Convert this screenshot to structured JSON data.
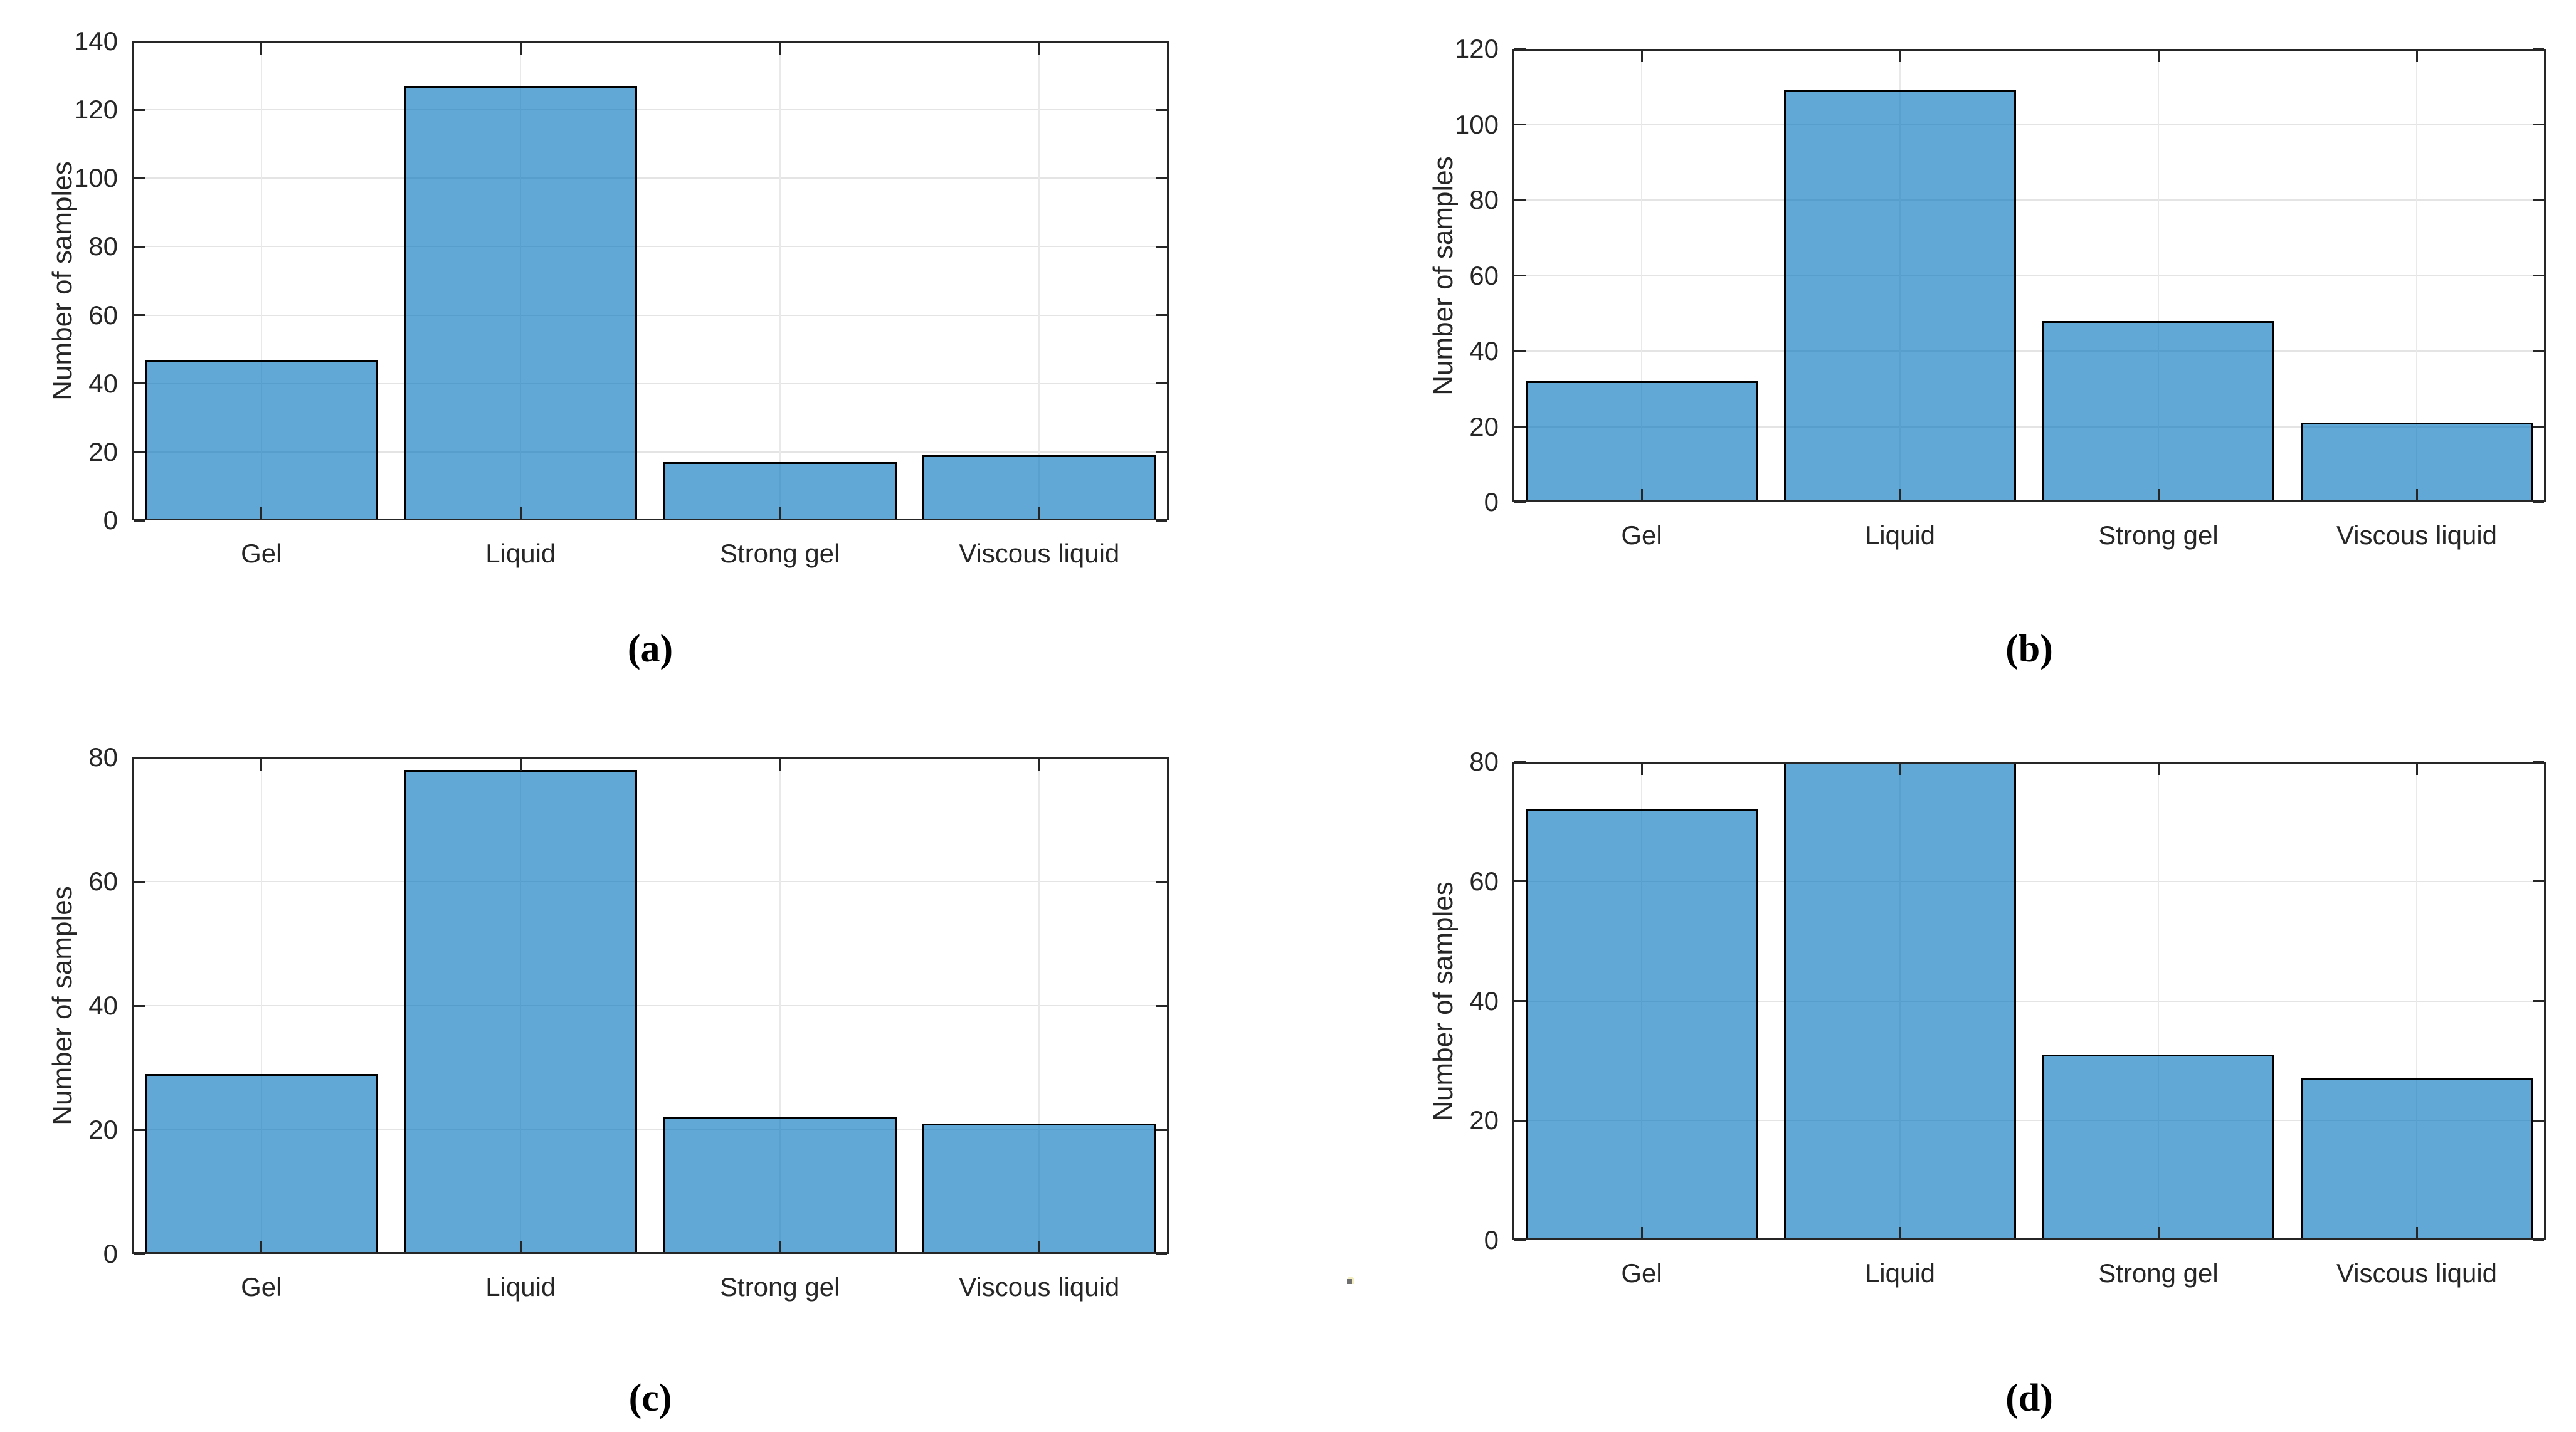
{
  "figure": {
    "background_color": "#ffffff",
    "description": "Four categorical bar charts of sample counts arranged in a 2x2 grid, labeled (a) through (d)"
  },
  "colors": {
    "bar_fill": "rgba(0,114,189,0.62)",
    "bar_fill_apparent": "#66aad7",
    "bar_edge": "#000000",
    "axis": "#262626",
    "grid": "#e4e4e4",
    "text": "#262626"
  },
  "chart_data": [
    {
      "type": "bar",
      "panel_label": "(a)",
      "title": "",
      "xlabel": "",
      "ylabel": "Number of samples",
      "categories": [
        "Gel",
        "Liquid",
        "Strong gel",
        "Viscous liquid"
      ],
      "values": [
        47,
        127,
        17,
        19
      ],
      "ylim": [
        0,
        140
      ],
      "yticks": [
        0,
        20,
        40,
        60,
        80,
        100,
        120,
        140
      ],
      "grid": true,
      "legend": "none",
      "bar_width_fraction": 0.9
    },
    {
      "type": "bar",
      "panel_label": "(b)",
      "title": "",
      "xlabel": "",
      "ylabel": "Number of samples",
      "categories": [
        "Gel",
        "Liquid",
        "Strong gel",
        "Viscous liquid"
      ],
      "values": [
        32,
        109,
        48,
        21
      ],
      "ylim": [
        0,
        120
      ],
      "yticks": [
        0,
        20,
        40,
        60,
        80,
        100,
        120
      ],
      "grid": true,
      "legend": "none",
      "bar_width_fraction": 0.9
    },
    {
      "type": "bar",
      "panel_label": "(c)",
      "title": "",
      "xlabel": "",
      "ylabel": "Number of samples",
      "categories": [
        "Gel",
        "Liquid",
        "Strong gel",
        "Viscous liquid"
      ],
      "values": [
        29,
        78,
        22,
        21
      ],
      "ylim": [
        0,
        80
      ],
      "yticks": [
        0,
        20,
        40,
        60,
        80
      ],
      "grid": true,
      "legend": "none",
      "bar_width_fraction": 0.9
    },
    {
      "type": "bar",
      "panel_label": "(d)",
      "title": "",
      "xlabel": "",
      "ylabel": "Number of samples",
      "categories": [
        "Gel",
        "Liquid",
        "Strong gel",
        "Viscous liquid"
      ],
      "values": [
        72,
        80,
        31,
        27
      ],
      "ylim": [
        0,
        80
      ],
      "yticks": [
        0,
        20,
        40,
        60,
        80
      ],
      "grid": true,
      "legend": "none",
      "bar_width_fraction": 0.9
    }
  ]
}
